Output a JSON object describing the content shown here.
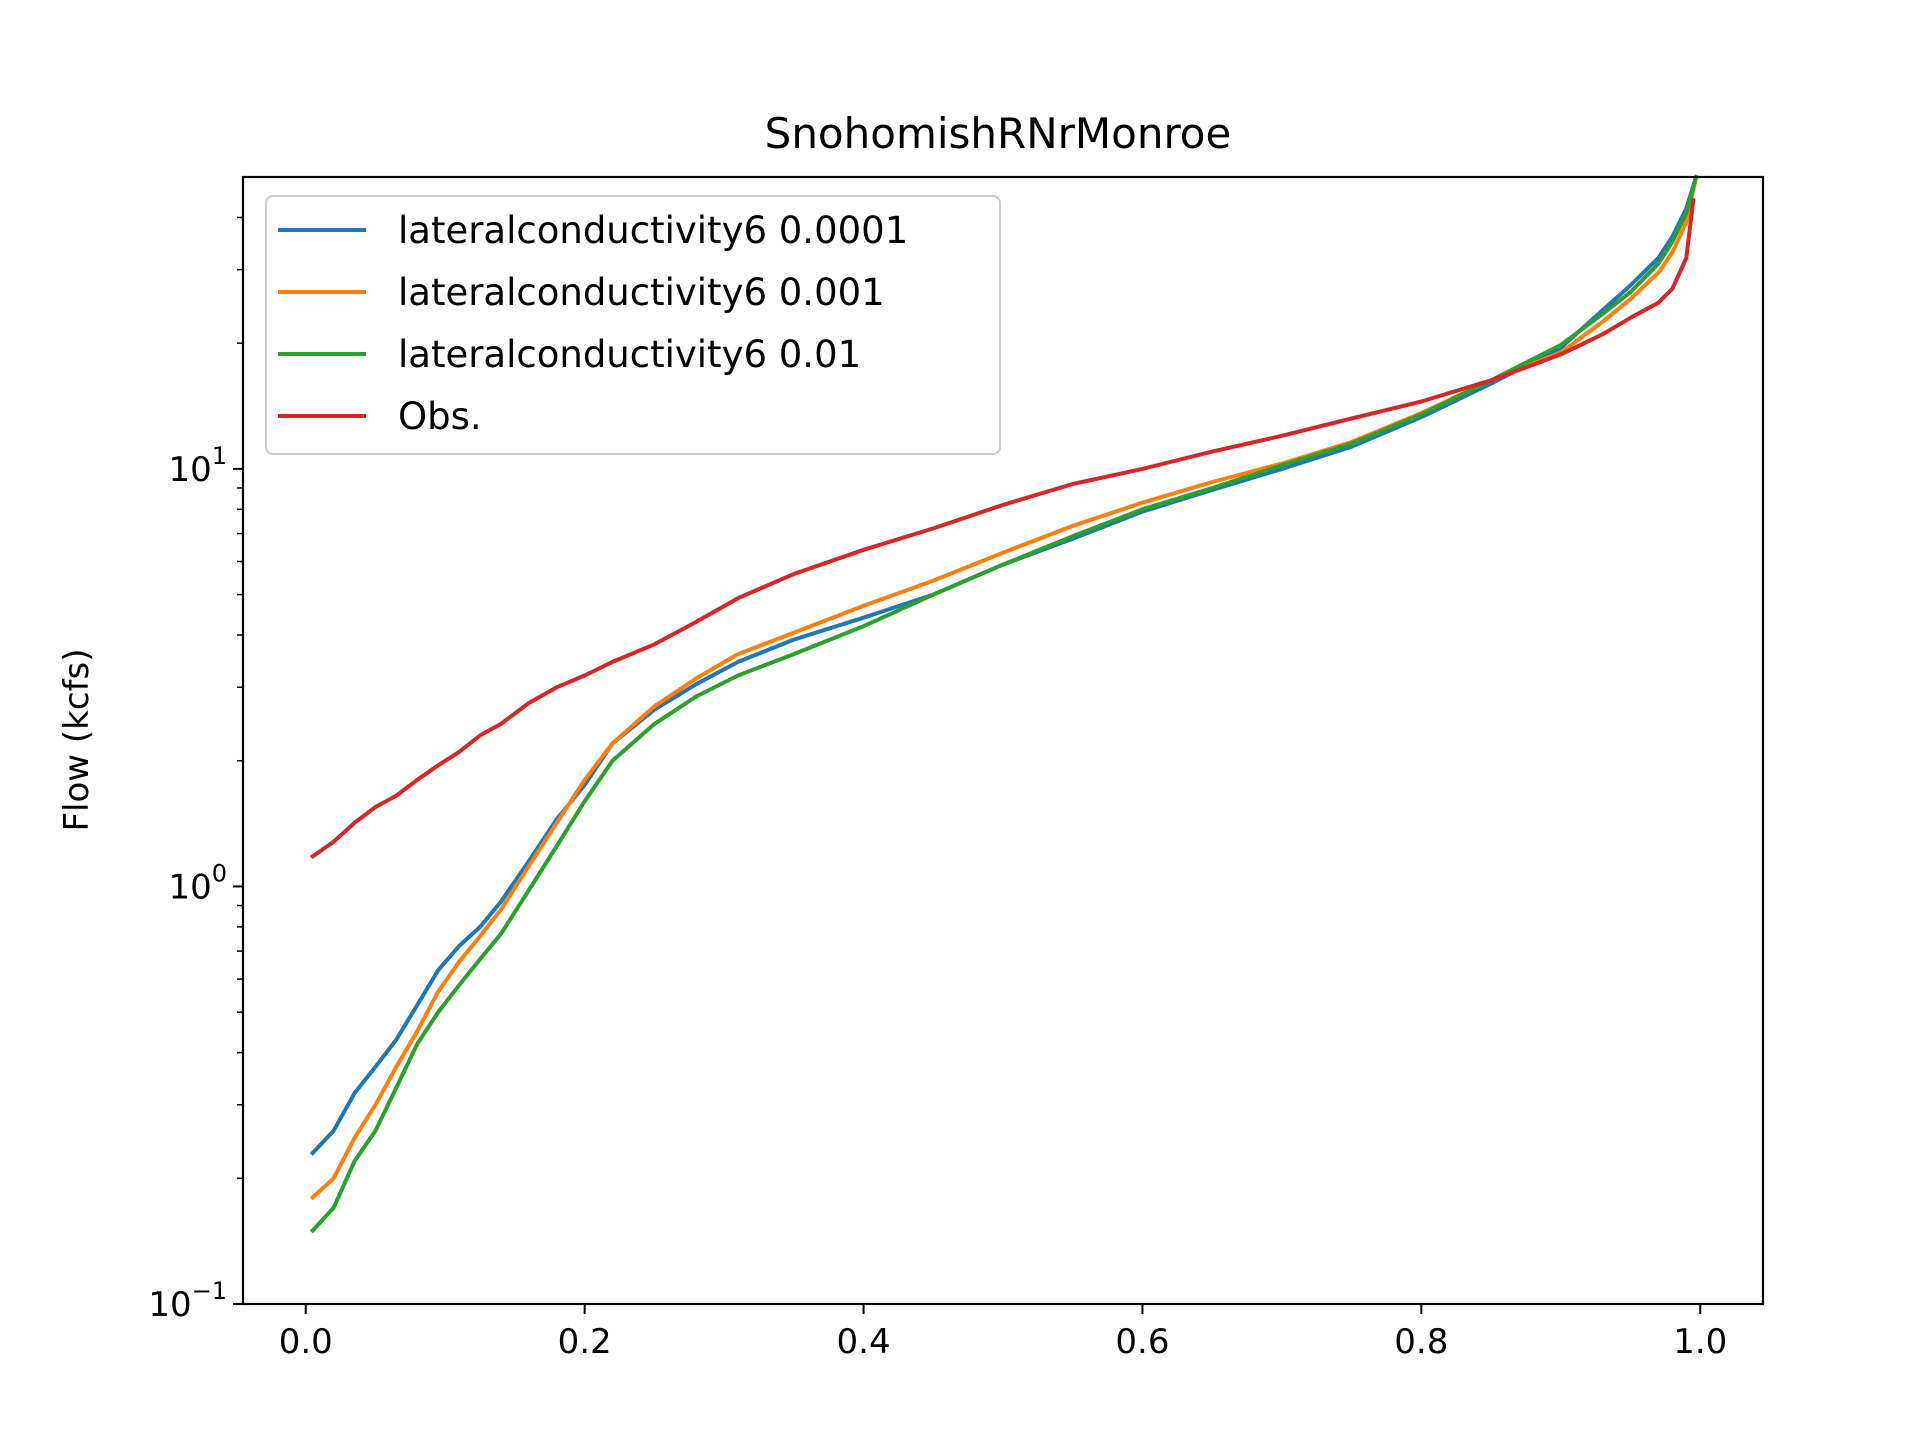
{
  "chart_data": {
    "type": "line",
    "title": "SnohomishRNrMonroe",
    "xlabel": "",
    "ylabel": "Flow (kcfs)",
    "xlim": [
      -0.045,
      1.045
    ],
    "ylim": [
      0.1,
      50
    ],
    "yscale": "log",
    "x_ticks": [
      {
        "value": 0.0,
        "label": "0.0"
      },
      {
        "value": 0.2,
        "label": "0.2"
      },
      {
        "value": 0.4,
        "label": "0.4"
      },
      {
        "value": 0.6,
        "label": "0.6"
      },
      {
        "value": 0.8,
        "label": "0.8"
      },
      {
        "value": 1.0,
        "label": "1.0"
      }
    ],
    "y_ticks": [
      {
        "value": 0.1,
        "base": "10",
        "exponent": "−1"
      },
      {
        "value": 1,
        "base": "10",
        "exponent": "0"
      },
      {
        "value": 10,
        "base": "10",
        "exponent": "1"
      }
    ],
    "legend_position": "upper-left",
    "grid": false,
    "series": [
      {
        "name": "lateralconductivity6 0.0001",
        "color": "#1f77b4",
        "x": [
          0.005,
          0.02,
          0.035,
          0.05,
          0.065,
          0.08,
          0.095,
          0.11,
          0.125,
          0.14,
          0.16,
          0.18,
          0.2,
          0.22,
          0.25,
          0.28,
          0.31,
          0.35,
          0.4,
          0.45,
          0.5,
          0.55,
          0.6,
          0.65,
          0.7,
          0.75,
          0.8,
          0.85,
          0.9,
          0.93,
          0.95,
          0.97,
          0.98,
          0.99,
          0.997
        ],
        "y": [
          0.23,
          0.26,
          0.32,
          0.37,
          0.43,
          0.52,
          0.63,
          0.72,
          0.8,
          0.92,
          1.15,
          1.45,
          1.75,
          2.2,
          2.65,
          3.05,
          3.45,
          3.9,
          4.4,
          5.0,
          5.9,
          6.8,
          7.9,
          8.9,
          10.0,
          11.3,
          13.3,
          16.0,
          19.5,
          24.0,
          27.5,
          32.0,
          36.0,
          42.0,
          50.0
        ]
      },
      {
        "name": "lateralconductivity6 0.001",
        "color": "#ff7f0e",
        "x": [
          0.005,
          0.02,
          0.035,
          0.05,
          0.065,
          0.08,
          0.095,
          0.11,
          0.125,
          0.14,
          0.16,
          0.18,
          0.2,
          0.22,
          0.25,
          0.28,
          0.31,
          0.35,
          0.4,
          0.45,
          0.5,
          0.55,
          0.6,
          0.65,
          0.7,
          0.75,
          0.8,
          0.85,
          0.9,
          0.93,
          0.95,
          0.97,
          0.98,
          0.99,
          0.997
        ],
        "y": [
          0.18,
          0.2,
          0.25,
          0.3,
          0.37,
          0.45,
          0.56,
          0.66,
          0.76,
          0.88,
          1.12,
          1.42,
          1.8,
          2.2,
          2.7,
          3.15,
          3.6,
          4.05,
          4.7,
          5.4,
          6.3,
          7.3,
          8.3,
          9.3,
          10.3,
          11.6,
          13.6,
          16.3,
          19.0,
          22.5,
          25.5,
          29.5,
          33.0,
          39.0,
          50.0
        ]
      },
      {
        "name": "lateralconductivity6 0.01",
        "color": "#2ca02c",
        "x": [
          0.005,
          0.02,
          0.035,
          0.05,
          0.065,
          0.08,
          0.095,
          0.11,
          0.125,
          0.14,
          0.16,
          0.18,
          0.2,
          0.22,
          0.25,
          0.28,
          0.31,
          0.35,
          0.4,
          0.45,
          0.5,
          0.55,
          0.6,
          0.65,
          0.7,
          0.75,
          0.8,
          0.85,
          0.9,
          0.93,
          0.95,
          0.97,
          0.98,
          0.99,
          0.997
        ],
        "y": [
          0.15,
          0.17,
          0.22,
          0.26,
          0.33,
          0.42,
          0.5,
          0.58,
          0.67,
          0.77,
          0.98,
          1.25,
          1.6,
          2.0,
          2.45,
          2.85,
          3.2,
          3.6,
          4.2,
          5.0,
          5.9,
          6.9,
          8.0,
          9.0,
          10.2,
          11.5,
          13.5,
          16.3,
          19.8,
          23.5,
          26.5,
          31.0,
          35.0,
          41.0,
          50.0
        ]
      },
      {
        "name": "Obs.",
        "color": "#d62728",
        "x": [
          0.005,
          0.02,
          0.035,
          0.05,
          0.065,
          0.08,
          0.095,
          0.11,
          0.125,
          0.14,
          0.16,
          0.18,
          0.2,
          0.22,
          0.25,
          0.28,
          0.31,
          0.35,
          0.4,
          0.45,
          0.5,
          0.55,
          0.6,
          0.65,
          0.7,
          0.75,
          0.8,
          0.85,
          0.9,
          0.93,
          0.95,
          0.97,
          0.98,
          0.99,
          0.995
        ],
        "y": [
          1.18,
          1.28,
          1.42,
          1.55,
          1.65,
          1.8,
          1.95,
          2.1,
          2.3,
          2.45,
          2.75,
          3.0,
          3.2,
          3.45,
          3.8,
          4.3,
          4.9,
          5.6,
          6.4,
          7.2,
          8.2,
          9.2,
          10.0,
          11.0,
          12.0,
          13.2,
          14.5,
          16.3,
          18.8,
          21.0,
          23.0,
          25.0,
          27.0,
          32.0,
          44.0
        ]
      }
    ]
  }
}
